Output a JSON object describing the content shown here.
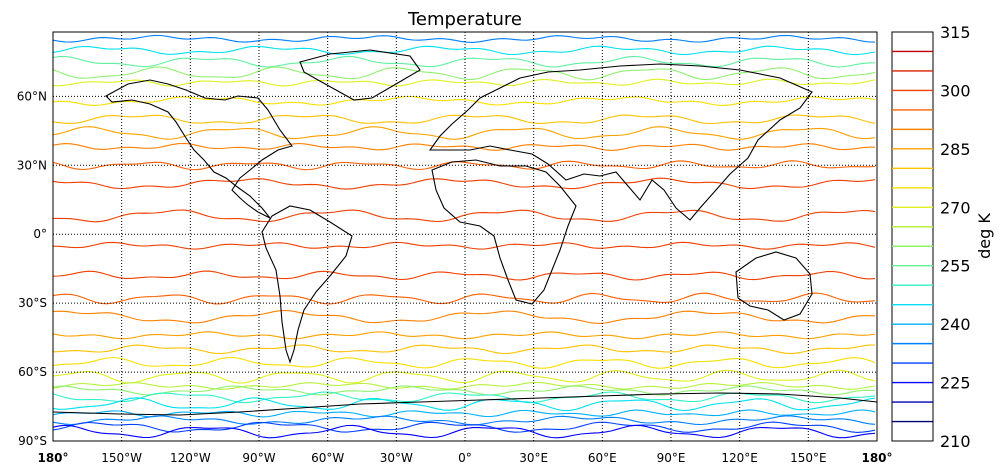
{
  "chart_data": {
    "type": "contour map",
    "title": "Temperature",
    "projection": "cylindrical (plate carrée)",
    "lon_range": [
      -180,
      180
    ],
    "lat_range": [
      -90,
      90
    ],
    "grid": "dotted graticule",
    "lon_tick_labels": [
      "180°",
      "150°W",
      "120°W",
      "90°W",
      "60°W",
      "30°W",
      "0°",
      "30°E",
      "60°E",
      "90°E",
      "120°E",
      "150°E",
      "180°"
    ],
    "lat_tick_labels": [
      "60°N",
      "30°N",
      "0°",
      "30°S",
      "60°S",
      "90°S"
    ],
    "colorbar": {
      "label": "deg K",
      "min": 210,
      "max": 315,
      "tick_labels": [
        "315",
        "300",
        "285",
        "270",
        "255",
        "240",
        "225",
        "210"
      ],
      "levels": [
        215,
        220,
        225,
        230,
        235,
        240,
        245,
        250,
        255,
        260,
        265,
        270,
        275,
        280,
        285,
        290,
        295,
        300,
        305,
        310
      ],
      "level_colors": [
        "#00006e",
        "#0000b4",
        "#0000ff",
        "#0040ff",
        "#0080ff",
        "#00b0ff",
        "#00e0f0",
        "#30f0c8",
        "#60f0a0",
        "#90f070",
        "#b8f040",
        "#e0f020",
        "#f8e000",
        "#ffc000",
        "#ffa000",
        "#ff8000",
        "#ff6000",
        "#f04000",
        "#d82000",
        "#c00000"
      ]
    },
    "contour_bands_by_latitude": [
      {
        "lat": 85,
        "level": 235
      },
      {
        "lat": 80,
        "level": 245
      },
      {
        "lat": 75,
        "level": 255
      },
      {
        "lat": 70,
        "level": 260
      },
      {
        "lat": 66,
        "level": 270
      },
      {
        "lat": 58,
        "level": 275
      },
      {
        "lat": 50,
        "level": 280
      },
      {
        "lat": 44,
        "level": 285
      },
      {
        "lat": 38,
        "level": 290
      },
      {
        "lat": 30,
        "level": 295
      },
      {
        "lat": 22,
        "level": 300
      },
      {
        "lat": 8,
        "level": 300
      },
      {
        "lat": -5,
        "level": 300
      },
      {
        "lat": -18,
        "level": 300
      },
      {
        "lat": -28,
        "level": 295
      },
      {
        "lat": -36,
        "level": 290
      },
      {
        "lat": -44,
        "level": 285
      },
      {
        "lat": -50,
        "level": 280
      },
      {
        "lat": -56,
        "level": 275
      },
      {
        "lat": -62,
        "level": 270
      },
      {
        "lat": -66,
        "level": 265
      },
      {
        "lat": -68,
        "level": 260
      },
      {
        "lat": -71,
        "level": 250
      },
      {
        "lat": -74,
        "level": 245
      },
      {
        "lat": -78,
        "level": 240
      },
      {
        "lat": -81,
        "level": 235
      },
      {
        "lat": -84,
        "level": 230
      },
      {
        "lat": -86,
        "level": 225
      }
    ]
  }
}
